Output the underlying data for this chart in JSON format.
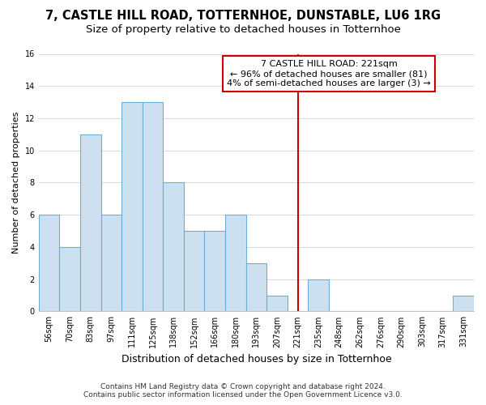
{
  "title1": "7, CASTLE HILL ROAD, TOTTERNHOE, DUNSTABLE, LU6 1RG",
  "title2": "Size of property relative to detached houses in Totternhoe",
  "xlabel": "Distribution of detached houses by size in Totternhoe",
  "ylabel": "Number of detached properties",
  "categories": [
    "56sqm",
    "70sqm",
    "83sqm",
    "97sqm",
    "111sqm",
    "125sqm",
    "138sqm",
    "152sqm",
    "166sqm",
    "180sqm",
    "193sqm",
    "207sqm",
    "221sqm",
    "235sqm",
    "248sqm",
    "262sqm",
    "276sqm",
    "290sqm",
    "303sqm",
    "317sqm",
    "331sqm"
  ],
  "values": [
    6,
    4,
    11,
    6,
    13,
    13,
    8,
    5,
    5,
    6,
    3,
    1,
    0,
    2,
    0,
    0,
    0,
    0,
    0,
    0,
    1
  ],
  "bar_color": "#cce0f0",
  "bar_edge_color": "#6baed6",
  "highlight_index": 12,
  "highlight_line_color": "#cc0000",
  "annotation_text": "7 CASTLE HILL ROAD: 221sqm\n← 96% of detached houses are smaller (81)\n4% of semi-detached houses are larger (3) →",
  "annotation_box_color": "#ffffff",
  "annotation_box_edge": "#cc0000",
  "footer1": "Contains HM Land Registry data © Crown copyright and database right 2024.",
  "footer2": "Contains public sector information licensed under the Open Government Licence v3.0.",
  "ylim": [
    0,
    16
  ],
  "yticks": [
    0,
    2,
    4,
    6,
    8,
    10,
    12,
    14,
    16
  ],
  "background_color": "#ffffff",
  "plot_bg_color": "#ffffff",
  "grid_color": "#d0dce8",
  "title1_fontsize": 10.5,
  "title2_fontsize": 9.5,
  "xlabel_fontsize": 9,
  "ylabel_fontsize": 8,
  "tick_fontsize": 7,
  "annotation_fontsize": 8,
  "footer_fontsize": 6.5
}
